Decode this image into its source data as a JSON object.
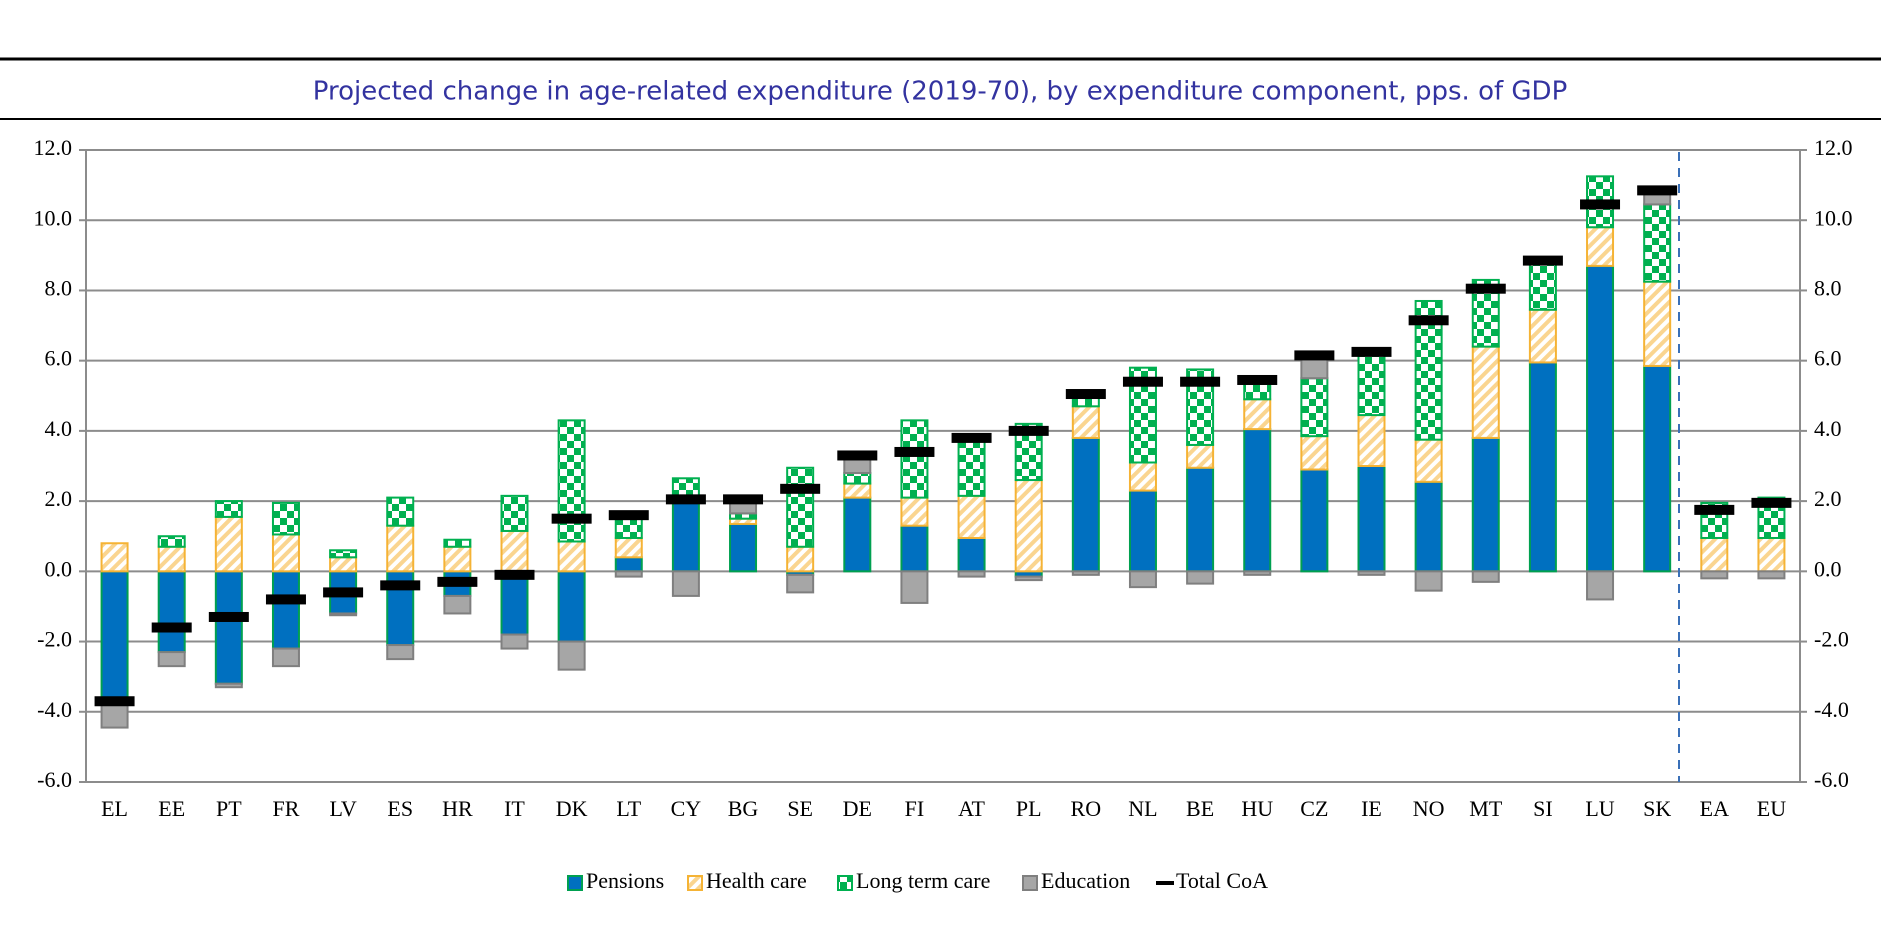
{
  "chart_data": {
    "type": "stacked_bar",
    "title": "Projected change in age-related expenditure (2019-70), by expenditure component, pps. of GDP",
    "categories": [
      "EL",
      "EE",
      "PT",
      "FR",
      "LV",
      "ES",
      "HR",
      "IT",
      "DK",
      "LT",
      "CY",
      "BG",
      "SE",
      "DE",
      "FI",
      "AT",
      "PL",
      "RO",
      "NL",
      "BE",
      "HU",
      "CZ",
      "IE",
      "NO",
      "MT",
      "SI",
      "LU",
      "SK",
      "EA",
      "EU"
    ],
    "series": [
      {
        "name": "Pensions",
        "color": "#0070c0",
        "pattern": "solid",
        "values": [
          -3.8,
          -2.3,
          -3.2,
          -2.2,
          -1.2,
          -2.1,
          -0.7,
          -1.8,
          -2.0,
          0.4,
          2.0,
          1.35,
          -0.1,
          2.1,
          1.3,
          0.95,
          -0.15,
          3.8,
          2.3,
          2.95,
          4.05,
          2.9,
          3.0,
          2.55,
          3.8,
          5.95,
          8.7,
          5.85,
          0.0,
          0.0
        ]
      },
      {
        "name": "Health care",
        "color": "#f5b335",
        "pattern": "stripes",
        "values": [
          0.8,
          0.7,
          1.55,
          1.05,
          0.4,
          1.3,
          0.7,
          1.15,
          0.85,
          0.55,
          0.1,
          0.15,
          0.7,
          0.4,
          0.8,
          1.2,
          2.6,
          0.9,
          0.8,
          0.65,
          0.85,
          0.95,
          1.45,
          1.2,
          2.6,
          1.5,
          1.1,
          2.4,
          0.95,
          0.95
        ]
      },
      {
        "name": "Long term care",
        "color": "#00b050",
        "pattern": "checks",
        "values": [
          0.0,
          0.3,
          0.45,
          0.9,
          0.2,
          0.8,
          0.2,
          1.0,
          3.45,
          0.75,
          0.55,
          0.15,
          2.25,
          0.3,
          2.2,
          1.7,
          1.6,
          0.35,
          2.7,
          2.15,
          0.6,
          1.65,
          1.85,
          3.95,
          1.9,
          1.4,
          1.45,
          2.2,
          1.0,
          1.15
        ]
      },
      {
        "name": "Education",
        "color": "#a6a6a6",
        "pattern": "solid",
        "values": [
          -0.65,
          -0.4,
          -0.1,
          -0.5,
          -0.05,
          -0.4,
          -0.5,
          -0.4,
          -0.8,
          -0.15,
          -0.7,
          0.35,
          -0.5,
          0.5,
          -0.9,
          -0.15,
          -0.1,
          -0.1,
          -0.45,
          -0.35,
          -0.1,
          0.7,
          -0.1,
          -0.55,
          -0.3,
          0.0,
          -0.8,
          0.4,
          -0.2,
          -0.2
        ]
      }
    ],
    "total": {
      "name": "Total CoA",
      "color": "#000000",
      "values": [
        -3.7,
        -1.6,
        -1.3,
        -0.8,
        -0.6,
        -0.4,
        -0.3,
        -0.1,
        1.5,
        1.6,
        2.05,
        2.05,
        2.35,
        3.3,
        3.4,
        3.8,
        4.0,
        5.05,
        5.4,
        5.4,
        5.45,
        6.15,
        6.25,
        7.15,
        8.05,
        8.85,
        10.45,
        10.85,
        1.75,
        1.95
      ]
    },
    "ylim": [
      -6,
      12
    ],
    "yticks": [
      {
        "value": -6,
        "label": "-6.0"
      },
      {
        "value": -4,
        "label": "-4.0"
      },
      {
        "value": -2,
        "label": "-2.0"
      },
      {
        "value": 0,
        "label": "0.0"
      },
      {
        "value": 2,
        "label": "2.0"
      },
      {
        "value": 4,
        "label": "4.0"
      },
      {
        "value": 6,
        "label": "6.0"
      },
      {
        "value": 8,
        "label": "8.0"
      },
      {
        "value": 10,
        "label": "10.0"
      },
      {
        "value": 12,
        "label": "12.0"
      }
    ],
    "grid": true,
    "legend": "bottom"
  }
}
